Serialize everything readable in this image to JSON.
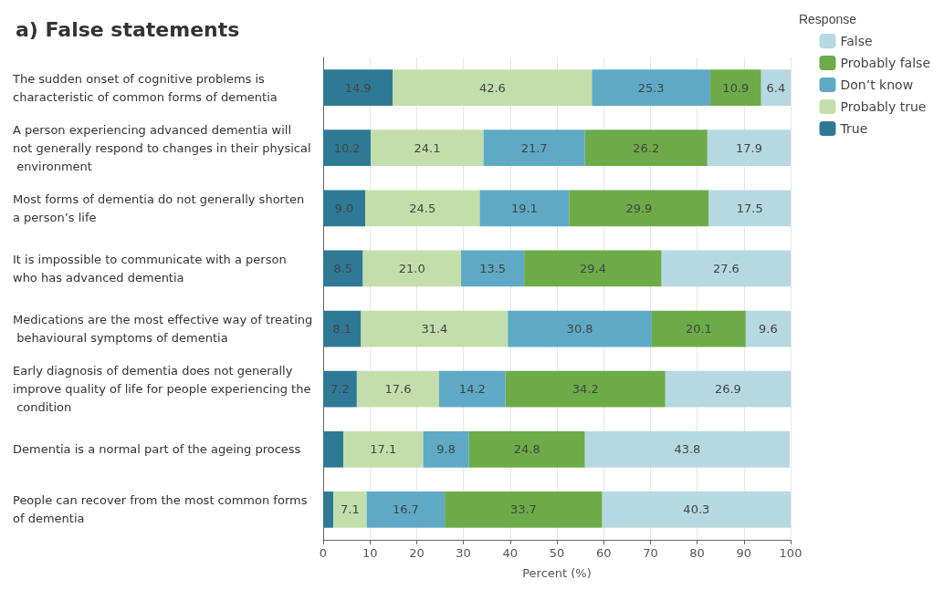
{
  "chart_data": {
    "type": "bar",
    "orientation": "horizontal",
    "stacked": true,
    "title": "a) False statements",
    "xlabel": "Percent (%)",
    "legend_title": "Response",
    "legend": "top right",
    "grid": "x",
    "categories": [
      "The sudden onset of cognitive problems is characteristic of common forms of dementia",
      "A person experiencing advanced dementia will not generally respond to changes in their physical environment",
      "Most forms of dementia do not generally shorten a person’s life",
      "It is impossible to communicate with a person who has advanced dementia",
      "Medications are the most effective way of treating behavioural symptoms of dementia",
      "Early diagnosis of dementia does not generally improve quality of life for people experiencing the condition",
      "Dementia is a normal part of the ageing process",
      "People can recover from the most common forms of dementia"
    ],
    "xlim": [
      0,
      100
    ],
    "xticks": [
      0,
      10,
      20,
      30,
      40,
      50,
      60,
      70,
      80,
      90,
      100
    ],
    "series": [
      {
        "name": "True",
        "color": "#2e7a96",
        "values": [
          14.9,
          10.2,
          9.0,
          8.5,
          8.1,
          7.2,
          4.3,
          2.2
        ],
        "value_labels": [
          "14.9",
          "10.2",
          "9.0",
          "8.5",
          "8.1",
          "7.2",
          null,
          null
        ]
      },
      {
        "name": "Probably true",
        "color": "#c2dfab",
        "values": [
          42.6,
          24.1,
          24.5,
          21.0,
          31.4,
          17.6,
          17.1,
          7.1
        ],
        "value_labels": [
          "42.6",
          "24.1",
          "24.5",
          "21.0",
          "31.4",
          "17.6",
          "17.1",
          "7.1"
        ]
      },
      {
        "name": "Don’t know",
        "color": "#5eaac6",
        "values": [
          25.3,
          21.7,
          19.1,
          13.5,
          30.8,
          14.2,
          9.8,
          16.7
        ],
        "value_labels": [
          "25.3",
          "21.7",
          "19.1",
          "13.5",
          "30.8",
          "14.2",
          "9.8",
          "16.7"
        ]
      },
      {
        "name": "Probably false",
        "color": "#6dab48",
        "values": [
          10.9,
          26.2,
          29.9,
          29.4,
          20.1,
          34.2,
          24.8,
          33.7
        ],
        "value_labels": [
          "10.9",
          "26.2",
          "29.9",
          "29.4",
          "20.1",
          "34.2",
          "24.8",
          "33.7"
        ]
      },
      {
        "name": "False",
        "color": "#b6d8e2",
        "values": [
          6.4,
          17.9,
          17.5,
          27.6,
          9.6,
          26.9,
          43.8,
          40.3
        ],
        "value_labels": [
          "6.4",
          "17.9",
          "17.5",
          "27.6",
          "9.6",
          "26.9",
          "43.8",
          "40.3"
        ]
      }
    ]
  }
}
